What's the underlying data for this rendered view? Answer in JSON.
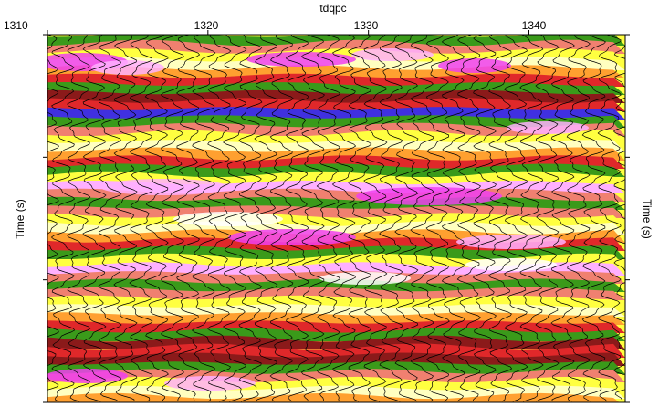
{
  "chart_data": {
    "type": "heatmap",
    "title": "tdqpc",
    "xlabel": "tdqpc",
    "ylabel_left": "Time (s)",
    "ylabel_right": "Time (s)",
    "x_ticks": [
      1310,
      1320,
      1330,
      1340
    ],
    "x_tick_labels": [
      "1310",
      "1320",
      "1330",
      "1340"
    ],
    "xlim": [
      1310,
      1346
    ],
    "y_ticks_unlabeled": true,
    "wiggle_traces": true,
    "colors": {
      "green": "#3a9a1a",
      "dark_red": "#8b1a1a",
      "red": "#e0282a",
      "salmon": "#f08070",
      "orange": "#ffa030",
      "yellow": "#ffff40",
      "light_yellow": "#ffffc0",
      "white": "#ffffff",
      "pink": "#ffb0ff",
      "magenta": "#f040f0",
      "blue": "#4030e0",
      "wiggle": "#000000"
    }
  }
}
